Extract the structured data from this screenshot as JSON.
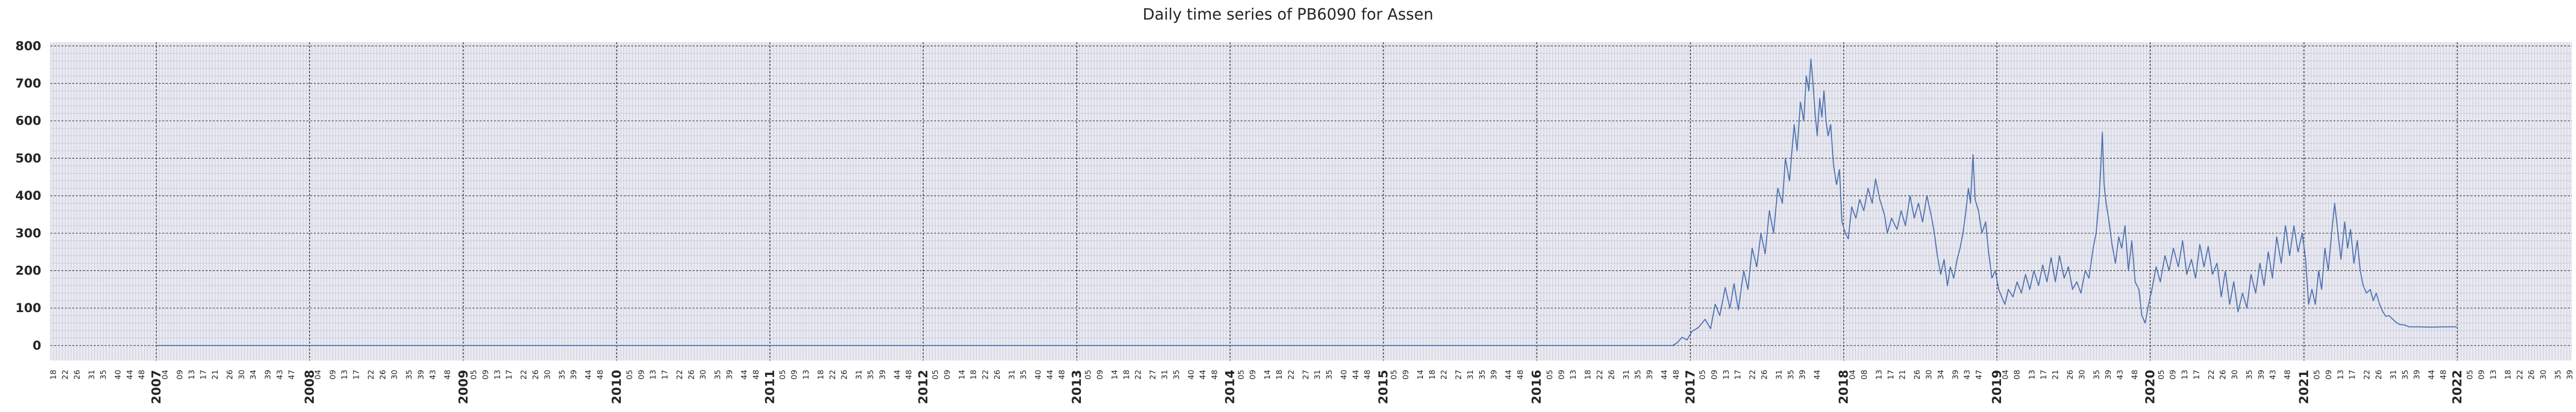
{
  "chart_data": {
    "type": "line",
    "title": "Daily time series of PB6090 for Assen",
    "xlabel": "",
    "ylabel": "",
    "xlim": [
      "2006-04-24",
      "2022-10-01"
    ],
    "ylim": [
      -40,
      810
    ],
    "y_ticks": [
      0,
      100,
      200,
      300,
      400,
      500,
      600,
      700,
      800
    ],
    "x_major_ticks": [
      "2007",
      "2008",
      "2009",
      "2010",
      "2011",
      "2012",
      "2013",
      "2014",
      "2015",
      "2016",
      "2017",
      "2018",
      "2019",
      "2020",
      "2021",
      "2022"
    ],
    "x_minor_ticks": {
      "2006": [
        "18",
        "22",
        "26",
        "31",
        "35",
        "40",
        "44",
        "48"
      ],
      "2007": [
        "04",
        "09",
        "13",
        "17",
        "21",
        "26",
        "30",
        "34",
        "39",
        "43",
        "47"
      ],
      "2008": [
        "04",
        "09",
        "13",
        "17",
        "22",
        "26",
        "30",
        "35",
        "39",
        "43",
        "48"
      ],
      "2009": [
        "05",
        "09",
        "13",
        "17",
        "22",
        "26",
        "30",
        "35",
        "39",
        "44",
        "48"
      ],
      "2010": [
        "05",
        "09",
        "13",
        "17",
        "22",
        "26",
        "30",
        "35",
        "39",
        "44",
        "48"
      ],
      "2011": [
        "05",
        "09",
        "13",
        "18",
        "22",
        "26",
        "31",
        "35",
        "39",
        "44",
        "48"
      ],
      "2012": [
        "05",
        "09",
        "14",
        "18",
        "22",
        "26",
        "31",
        "35",
        "40",
        "44",
        "48"
      ],
      "2013": [
        "05",
        "09",
        "14",
        "18",
        "22",
        "27",
        "31",
        "35",
        "40",
        "44",
        "48"
      ],
      "2014": [
        "05",
        "09",
        "14",
        "18",
        "22",
        "27",
        "31",
        "35",
        "40",
        "44",
        "48"
      ],
      "2015": [
        "05",
        "09",
        "14",
        "18",
        "22",
        "27",
        "31",
        "35",
        "39",
        "44",
        "48"
      ],
      "2016": [
        "05",
        "09",
        "13",
        "18",
        "22",
        "26",
        "31",
        "35",
        "39",
        "44",
        "48"
      ],
      "2017": [
        "05",
        "09",
        "13",
        "17",
        "22",
        "26",
        "31",
        "35",
        "39",
        "44"
      ],
      "2018": [
        "04",
        "08",
        "13",
        "17",
        "21",
        "26",
        "30",
        "34",
        "39",
        "43",
        "47"
      ],
      "2019": [
        "04",
        "08",
        "13",
        "17",
        "21",
        "26",
        "30",
        "35",
        "39",
        "43",
        "48"
      ],
      "2020": [
        "05",
        "09",
        "13",
        "17",
        "22",
        "26",
        "30",
        "35",
        "39",
        "43",
        "48"
      ],
      "2021": [
        "05",
        "09",
        "13",
        "17",
        "22",
        "26",
        "31",
        "35",
        "39",
        "44",
        "48"
      ],
      "2022": [
        "05",
        "09",
        "13",
        "18",
        "22",
        "26",
        "30",
        "35",
        "39"
      ]
    },
    "series": [
      {
        "color": "#4c72b0",
        "points": [
          [
            "2007-01-01",
            0
          ],
          [
            "2008-01-01",
            0
          ],
          [
            "2010-01-01",
            0
          ],
          [
            "2012-01-01",
            0
          ],
          [
            "2014-01-01",
            0
          ],
          [
            "2016-01-01",
            0
          ],
          [
            "2016-10-01",
            0
          ],
          [
            "2016-11-20",
            0
          ],
          [
            "2016-12-01",
            8
          ],
          [
            "2016-12-12",
            22
          ],
          [
            "2016-12-24",
            15
          ],
          [
            "2017-01-05",
            38
          ],
          [
            "2017-01-20",
            48
          ],
          [
            "2017-02-05",
            70
          ],
          [
            "2017-02-18",
            45
          ],
          [
            "2017-03-01",
            110
          ],
          [
            "2017-03-12",
            80
          ],
          [
            "2017-03-25",
            155
          ],
          [
            "2017-04-05",
            100
          ],
          [
            "2017-04-15",
            165
          ],
          [
            "2017-04-25",
            95
          ],
          [
            "2017-05-08",
            200
          ],
          [
            "2017-05-18",
            150
          ],
          [
            "2017-05-28",
            260
          ],
          [
            "2017-06-08",
            210
          ],
          [
            "2017-06-18",
            300
          ],
          [
            "2017-06-28",
            245
          ],
          [
            "2017-07-08",
            360
          ],
          [
            "2017-07-18",
            300
          ],
          [
            "2017-07-28",
            420
          ],
          [
            "2017-08-08",
            380
          ],
          [
            "2017-08-15",
            500
          ],
          [
            "2017-08-25",
            440
          ],
          [
            "2017-09-05",
            590
          ],
          [
            "2017-09-12",
            520
          ],
          [
            "2017-09-20",
            650
          ],
          [
            "2017-09-28",
            600
          ],
          [
            "2017-10-04",
            720
          ],
          [
            "2017-10-10",
            680
          ],
          [
            "2017-10-15",
            765
          ],
          [
            "2017-10-20",
            700
          ],
          [
            "2017-10-25",
            620
          ],
          [
            "2017-10-30",
            560
          ],
          [
            "2017-11-05",
            660
          ],
          [
            "2017-11-10",
            610
          ],
          [
            "2017-11-15",
            680
          ],
          [
            "2017-11-20",
            600
          ],
          [
            "2017-11-25",
            560
          ],
          [
            "2017-12-01",
            590
          ],
          [
            "2017-12-08",
            480
          ],
          [
            "2017-12-15",
            430
          ],
          [
            "2017-12-22",
            470
          ],
          [
            "2017-12-28",
            330
          ],
          [
            "2018-01-05",
            300
          ],
          [
            "2018-01-12",
            285
          ],
          [
            "2018-01-20",
            370
          ],
          [
            "2018-01-30",
            340
          ],
          [
            "2018-02-08",
            390
          ],
          [
            "2018-02-18",
            360
          ],
          [
            "2018-02-28",
            420
          ],
          [
            "2018-03-10",
            380
          ],
          [
            "2018-03-18",
            445
          ],
          [
            "2018-03-28",
            390
          ],
          [
            "2018-04-08",
            350
          ],
          [
            "2018-04-15",
            300
          ],
          [
            "2018-04-25",
            340
          ],
          [
            "2018-05-08",
            310
          ],
          [
            "2018-05-18",
            360
          ],
          [
            "2018-05-28",
            320
          ],
          [
            "2018-06-08",
            400
          ],
          [
            "2018-06-18",
            340
          ],
          [
            "2018-06-28",
            380
          ],
          [
            "2018-07-08",
            330
          ],
          [
            "2018-07-18",
            400
          ],
          [
            "2018-07-28",
            350
          ],
          [
            "2018-08-05",
            300
          ],
          [
            "2018-08-12",
            240
          ],
          [
            "2018-08-20",
            190
          ],
          [
            "2018-08-28",
            230
          ],
          [
            "2018-09-05",
            160
          ],
          [
            "2018-09-12",
            210
          ],
          [
            "2018-09-20",
            180
          ],
          [
            "2018-09-28",
            230
          ],
          [
            "2018-10-05",
            260
          ],
          [
            "2018-10-12",
            300
          ],
          [
            "2018-10-18",
            350
          ],
          [
            "2018-10-25",
            420
          ],
          [
            "2018-10-30",
            380
          ],
          [
            "2018-11-05",
            510
          ],
          [
            "2018-11-10",
            390
          ],
          [
            "2018-11-18",
            360
          ],
          [
            "2018-11-26",
            300
          ],
          [
            "2018-12-05",
            330
          ],
          [
            "2018-12-12",
            250
          ],
          [
            "2018-12-20",
            180
          ],
          [
            "2018-12-28",
            200
          ],
          [
            "2019-01-05",
            150
          ],
          [
            "2019-01-12",
            130
          ],
          [
            "2019-01-20",
            110
          ],
          [
            "2019-01-28",
            150
          ],
          [
            "2019-02-08",
            130
          ],
          [
            "2019-02-18",
            170
          ],
          [
            "2019-02-28",
            140
          ],
          [
            "2019-03-10",
            190
          ],
          [
            "2019-03-20",
            150
          ],
          [
            "2019-03-30",
            200
          ],
          [
            "2019-04-10",
            160
          ],
          [
            "2019-04-20",
            215
          ],
          [
            "2019-04-30",
            170
          ],
          [
            "2019-05-10",
            235
          ],
          [
            "2019-05-20",
            170
          ],
          [
            "2019-05-30",
            240
          ],
          [
            "2019-06-10",
            180
          ],
          [
            "2019-06-20",
            210
          ],
          [
            "2019-06-30",
            150
          ],
          [
            "2019-07-10",
            170
          ],
          [
            "2019-07-20",
            140
          ],
          [
            "2019-07-30",
            200
          ],
          [
            "2019-08-08",
            180
          ],
          [
            "2019-08-18",
            260
          ],
          [
            "2019-08-25",
            300
          ],
          [
            "2019-09-01",
            390
          ],
          [
            "2019-09-05",
            470
          ],
          [
            "2019-09-09",
            570
          ],
          [
            "2019-09-13",
            430
          ],
          [
            "2019-09-18",
            380
          ],
          [
            "2019-09-25",
            330
          ],
          [
            "2019-10-02",
            270
          ],
          [
            "2019-10-10",
            220
          ],
          [
            "2019-10-18",
            290
          ],
          [
            "2019-10-25",
            260
          ],
          [
            "2019-11-02",
            320
          ],
          [
            "2019-11-10",
            200
          ],
          [
            "2019-11-18",
            280
          ],
          [
            "2019-11-26",
            170
          ],
          [
            "2019-12-05",
            150
          ],
          [
            "2019-12-12",
            80
          ],
          [
            "2019-12-20",
            60
          ],
          [
            "2019-12-28",
            110
          ],
          [
            "2020-01-05",
            150
          ],
          [
            "2020-01-15",
            210
          ],
          [
            "2020-01-25",
            170
          ],
          [
            "2020-02-05",
            240
          ],
          [
            "2020-02-15",
            200
          ],
          [
            "2020-02-25",
            260
          ],
          [
            "2020-03-08",
            210
          ],
          [
            "2020-03-18",
            280
          ],
          [
            "2020-03-28",
            190
          ],
          [
            "2020-04-08",
            230
          ],
          [
            "2020-04-18",
            180
          ],
          [
            "2020-04-28",
            270
          ],
          [
            "2020-05-08",
            210
          ],
          [
            "2020-05-18",
            265
          ],
          [
            "2020-05-28",
            190
          ],
          [
            "2020-06-08",
            220
          ],
          [
            "2020-06-18",
            130
          ],
          [
            "2020-06-28",
            200
          ],
          [
            "2020-07-08",
            110
          ],
          [
            "2020-07-18",
            170
          ],
          [
            "2020-07-28",
            90
          ],
          [
            "2020-08-08",
            140
          ],
          [
            "2020-08-18",
            100
          ],
          [
            "2020-08-28",
            190
          ],
          [
            "2020-09-08",
            140
          ],
          [
            "2020-09-18",
            220
          ],
          [
            "2020-09-28",
            160
          ],
          [
            "2020-10-08",
            250
          ],
          [
            "2020-10-18",
            180
          ],
          [
            "2020-10-28",
            290
          ],
          [
            "2020-11-08",
            220
          ],
          [
            "2020-11-18",
            320
          ],
          [
            "2020-11-28",
            240
          ],
          [
            "2020-12-08",
            320
          ],
          [
            "2020-12-18",
            250
          ],
          [
            "2020-12-28",
            300
          ],
          [
            "2021-01-05",
            230
          ],
          [
            "2021-01-12",
            110
          ],
          [
            "2021-01-20",
            150
          ],
          [
            "2021-01-28",
            110
          ],
          [
            "2021-02-05",
            200
          ],
          [
            "2021-02-12",
            150
          ],
          [
            "2021-02-20",
            260
          ],
          [
            "2021-02-28",
            200
          ],
          [
            "2021-03-08",
            300
          ],
          [
            "2021-03-15",
            380
          ],
          [
            "2021-03-22",
            310
          ],
          [
            "2021-03-30",
            230
          ],
          [
            "2021-04-08",
            330
          ],
          [
            "2021-04-15",
            260
          ],
          [
            "2021-04-22",
            310
          ],
          [
            "2021-04-30",
            220
          ],
          [
            "2021-05-08",
            280
          ],
          [
            "2021-05-15",
            200
          ],
          [
            "2021-05-22",
            160
          ],
          [
            "2021-05-30",
            140
          ],
          [
            "2021-06-08",
            150
          ],
          [
            "2021-06-15",
            120
          ],
          [
            "2021-06-22",
            140
          ],
          [
            "2021-06-30",
            110
          ],
          [
            "2021-07-08",
            90
          ],
          [
            "2021-07-15",
            78
          ],
          [
            "2021-07-22",
            80
          ],
          [
            "2021-07-30",
            72
          ],
          [
            "2021-08-08",
            62
          ],
          [
            "2021-08-18",
            56
          ],
          [
            "2021-08-28",
            55
          ],
          [
            "2021-09-08",
            50
          ],
          [
            "2021-10-01",
            50
          ],
          [
            "2021-11-01",
            49
          ],
          [
            "2021-12-01",
            50
          ],
          [
            "2021-12-31",
            50
          ]
        ]
      }
    ]
  },
  "colors": {
    "background": "#eaeaf2",
    "line": "#4c72b0",
    "grid_major": "#333333",
    "grid_minor": "#c8c8d8"
  }
}
